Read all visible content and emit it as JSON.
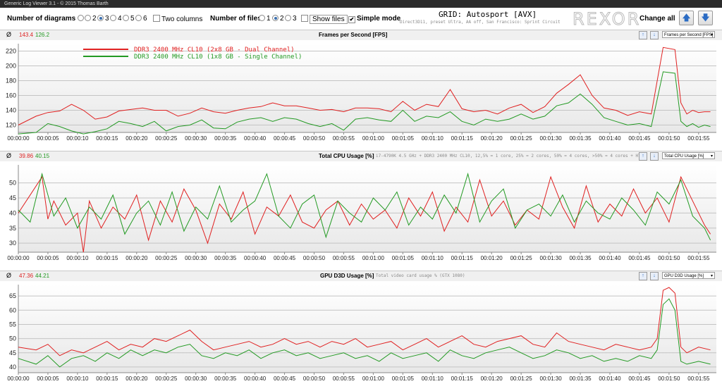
{
  "window": {
    "title": "Generic Log Viewer 3.1 - © 2015 Thomas Barth"
  },
  "toolbar": {
    "num_diagrams_label": "Number of diagrams",
    "diagram_options": [
      "1",
      "2",
      "3",
      "4",
      "5",
      "6"
    ],
    "diagram_selected": "3",
    "two_columns_label": "Two columns",
    "num_files_label": "Number of files",
    "file_options": [
      "1",
      "2",
      "3"
    ],
    "file_selected": "2",
    "show_files_label": "Show files",
    "simple_mode_label": "Simple mode",
    "grid_title": "GRID: Autosport [AVX]",
    "grid_subtitle": "Direct3D11, preset Ultra, AA off, San Francisco: Sprint Circuit",
    "logo_text": "REXOR",
    "change_all_label": "Change all",
    "up_icon": "arrow-up-icon",
    "down_icon": "arrow-down-icon"
  },
  "avg_symbol": "Ø",
  "colors": {
    "dual": "#e02020",
    "single": "#239a23",
    "fill": "#e8e8e8",
    "gridline": "#c4c4c4"
  },
  "x_ticks": [
    "00:00:00",
    "00:00:05",
    "00:00:10",
    "00:00:15",
    "00:00:20",
    "00:00:25",
    "00:00:30",
    "00:00:35",
    "00:00:40",
    "00:00:45",
    "00:00:50",
    "00:00:55",
    "00:01:00",
    "00:01:05",
    "00:01:10",
    "00:01:15",
    "00:01:20",
    "00:01:25",
    "00:01:30",
    "00:01:35",
    "00:01:40",
    "00:01:45",
    "00:01:50",
    "00:01:55"
  ],
  "panels": [
    {
      "title": "Frames per Second [FPS]",
      "info": "",
      "avg_dual": "143.4",
      "avg_single": "126.2",
      "dropdown": "Frames per Second [FPS]"
    },
    {
      "title": "Total CPU Usage [%]",
      "info": "i7-4790K 4.5 GHz + DDR3 2400 MHz CL10, 12,5% = 1 core, 25% = 2 cores, 50% = 4 cores, >50% = 4 cores + HT",
      "avg_dual": "39.86",
      "avg_single": "40.15",
      "dropdown": "Total CPU Usage [%]"
    },
    {
      "title": "GPU D3D Usage [%]",
      "info": "Total video card usage % (GTX 1080)",
      "avg_dual": "47.36",
      "avg_single": "44.21",
      "dropdown": "GPU D3D Usage [%]"
    }
  ],
  "chart_data": [
    {
      "type": "line",
      "title": "Frames per Second [FPS]",
      "x_unit": "seconds",
      "xlim": [
        0,
        118
      ],
      "ylim": [
        110,
        230
      ],
      "yticks": [
        120,
        140,
        160,
        180,
        200,
        220
      ],
      "grid": true,
      "legend_placement": "top-left",
      "series": [
        {
          "name": "DDR3 2400 MHz CL10 (2x8 GB - Dual Channel)",
          "color": "#e02020",
          "x": [
            0,
            3,
            5,
            7,
            9,
            11,
            13,
            15,
            17,
            19,
            21,
            23,
            25,
            27,
            29,
            31,
            33,
            35,
            37,
            39,
            41,
            43,
            45,
            47,
            49,
            51,
            53,
            55,
            57,
            59,
            61,
            63,
            65,
            67,
            69,
            71,
            73,
            75,
            77,
            79,
            81,
            83,
            85,
            87,
            89,
            91,
            93,
            95,
            97,
            99,
            101,
            103,
            105,
            107,
            109,
            111,
            112,
            113,
            114,
            115,
            116,
            117
          ],
          "y": [
            120,
            132,
            137,
            139,
            148,
            140,
            128,
            131,
            139,
            141,
            143,
            140,
            140,
            132,
            136,
            143,
            138,
            136,
            140,
            143,
            145,
            150,
            146,
            146,
            143,
            140,
            141,
            138,
            143,
            143,
            142,
            138,
            152,
            140,
            148,
            145,
            168,
            142,
            138,
            140,
            135,
            143,
            148,
            137,
            145,
            163,
            175,
            188,
            160,
            143,
            140,
            133,
            138,
            135,
            225,
            222,
            150,
            135,
            140,
            137,
            138,
            138
          ]
        },
        {
          "name": "DDR3 2400 MHz CL10 (1x8 GB - Single Channel)",
          "color": "#239a23",
          "x": [
            0,
            3,
            5,
            7,
            9,
            11,
            13,
            15,
            17,
            19,
            21,
            23,
            25,
            27,
            29,
            31,
            33,
            35,
            37,
            39,
            41,
            43,
            45,
            47,
            49,
            51,
            53,
            55,
            57,
            59,
            61,
            63,
            65,
            67,
            69,
            71,
            73,
            75,
            77,
            79,
            81,
            83,
            85,
            87,
            89,
            91,
            93,
            95,
            97,
            99,
            101,
            103,
            105,
            107,
            109,
            111,
            112,
            113,
            114,
            115,
            116,
            117
          ],
          "y": [
            108,
            110,
            122,
            118,
            112,
            108,
            111,
            115,
            125,
            122,
            118,
            125,
            112,
            118,
            120,
            127,
            116,
            115,
            124,
            128,
            130,
            125,
            130,
            128,
            122,
            118,
            122,
            113,
            128,
            130,
            127,
            125,
            140,
            125,
            132,
            130,
            138,
            125,
            120,
            128,
            125,
            128,
            135,
            128,
            132,
            146,
            150,
            162,
            148,
            130,
            125,
            120,
            122,
            118,
            192,
            190,
            125,
            118,
            122,
            117,
            120,
            118
          ]
        }
      ]
    },
    {
      "type": "line",
      "title": "Total CPU Usage [%]",
      "x_unit": "seconds",
      "xlim": [
        0,
        118
      ],
      "ylim": [
        27,
        56
      ],
      "yticks": [
        30,
        35,
        40,
        45,
        50
      ],
      "grid": true,
      "series": [
        {
          "name": "DDR3 2400 MHz CL10 (2x8 GB - Dual Channel)",
          "color": "#e02020",
          "x": [
            0,
            2,
            4,
            5,
            6,
            8,
            10,
            11,
            12,
            14,
            16,
            18,
            20,
            22,
            24,
            26,
            28,
            30,
            32,
            34,
            36,
            38,
            40,
            42,
            44,
            46,
            48,
            50,
            52,
            54,
            56,
            58,
            60,
            62,
            64,
            66,
            68,
            70,
            72,
            74,
            76,
            78,
            80,
            82,
            84,
            86,
            88,
            90,
            92,
            94,
            96,
            98,
            100,
            102,
            104,
            106,
            108,
            110,
            112,
            114,
            116,
            117
          ],
          "y": [
            40,
            46,
            52,
            38,
            44,
            36,
            40,
            27,
            44,
            35,
            42,
            38,
            46,
            31,
            44,
            37,
            48,
            41,
            30,
            43,
            38,
            47,
            33,
            42,
            39,
            46,
            37,
            35,
            41,
            44,
            36,
            43,
            38,
            41,
            35,
            45,
            39,
            47,
            34,
            42,
            37,
            51,
            39,
            44,
            36,
            41,
            38,
            52,
            42,
            35,
            49,
            37,
            43,
            39,
            48,
            40,
            45,
            37,
            52,
            44,
            36,
            33
          ]
        },
        {
          "name": "DDR3 2400 MHz CL10 (1x8 GB - Single Channel)",
          "color": "#239a23",
          "x": [
            0,
            2,
            4,
            6,
            8,
            10,
            12,
            14,
            16,
            18,
            20,
            22,
            24,
            26,
            28,
            30,
            32,
            34,
            36,
            38,
            40,
            42,
            44,
            46,
            48,
            50,
            52,
            54,
            56,
            58,
            60,
            62,
            64,
            66,
            68,
            70,
            72,
            74,
            76,
            78,
            80,
            82,
            84,
            86,
            88,
            90,
            92,
            94,
            96,
            98,
            100,
            102,
            104,
            106,
            108,
            110,
            112,
            114,
            116,
            117
          ],
          "y": [
            41,
            37,
            53,
            39,
            45,
            35,
            42,
            38,
            46,
            33,
            40,
            44,
            36,
            47,
            34,
            42,
            38,
            49,
            37,
            41,
            44,
            53,
            39,
            35,
            43,
            46,
            32,
            44,
            40,
            37,
            45,
            41,
            47,
            36,
            42,
            38,
            46,
            40,
            53,
            37,
            44,
            48,
            35,
            41,
            43,
            39,
            46,
            37,
            44,
            40,
            38,
            45,
            41,
            36,
            47,
            43,
            51,
            39,
            35,
            31
          ]
        }
      ]
    },
    {
      "type": "line",
      "title": "GPU D3D Usage [%]",
      "x_unit": "seconds",
      "xlim": [
        0,
        118
      ],
      "ylim": [
        38,
        69
      ],
      "yticks": [
        40,
        45,
        50,
        55,
        60,
        65
      ],
      "grid": true,
      "series": [
        {
          "name": "DDR3 2400 MHz CL10 (2x8 GB - Dual Channel)",
          "color": "#e02020",
          "x": [
            0,
            3,
            5,
            7,
            9,
            11,
            13,
            15,
            17,
            19,
            21,
            23,
            25,
            27,
            29,
            31,
            33,
            35,
            37,
            39,
            41,
            43,
            45,
            47,
            49,
            51,
            53,
            55,
            57,
            59,
            61,
            63,
            65,
            67,
            69,
            71,
            73,
            75,
            77,
            79,
            81,
            83,
            85,
            87,
            89,
            91,
            93,
            95,
            97,
            99,
            101,
            103,
            105,
            107,
            108,
            109,
            110,
            111,
            112,
            113,
            115,
            117
          ],
          "y": [
            47,
            46,
            48,
            44,
            46,
            45,
            47,
            49,
            46,
            48,
            47,
            50,
            49,
            51,
            53,
            49,
            46,
            47,
            48,
            49,
            47,
            48,
            50,
            48,
            49,
            47,
            49,
            48,
            50,
            47,
            48,
            49,
            46,
            48,
            50,
            47,
            49,
            51,
            48,
            47,
            49,
            50,
            51,
            48,
            47,
            52,
            49,
            48,
            47,
            46,
            48,
            47,
            46,
            47,
            50,
            67,
            68,
            66,
            47,
            45,
            47,
            46
          ]
        },
        {
          "name": "DDR3 2400 MHz CL10 (1x8 GB - Single Channel)",
          "color": "#239a23",
          "x": [
            0,
            3,
            5,
            7,
            9,
            11,
            13,
            15,
            17,
            19,
            21,
            23,
            25,
            27,
            29,
            31,
            33,
            35,
            37,
            39,
            41,
            43,
            45,
            47,
            49,
            51,
            53,
            55,
            57,
            59,
            61,
            63,
            65,
            67,
            69,
            71,
            73,
            75,
            77,
            79,
            81,
            83,
            85,
            87,
            89,
            91,
            93,
            95,
            97,
            99,
            101,
            103,
            105,
            107,
            108,
            109,
            110,
            111,
            112,
            113,
            115,
            117
          ],
          "y": [
            43,
            41,
            44,
            40,
            43,
            44,
            42,
            45,
            43,
            46,
            44,
            46,
            45,
            47,
            48,
            44,
            43,
            45,
            44,
            46,
            43,
            45,
            46,
            44,
            45,
            43,
            44,
            45,
            43,
            44,
            42,
            45,
            43,
            44,
            45,
            42,
            46,
            44,
            43,
            45,
            46,
            47,
            45,
            43,
            44,
            46,
            45,
            43,
            44,
            42,
            43,
            42,
            44,
            43,
            46,
            62,
            64,
            60,
            42,
            41,
            42,
            41
          ]
        }
      ]
    }
  ]
}
